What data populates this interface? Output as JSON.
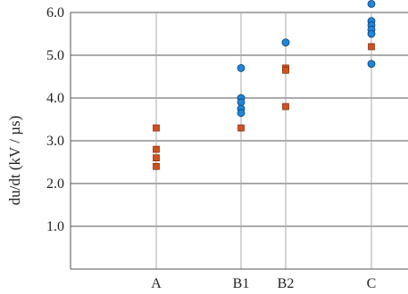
{
  "chart_data": {
    "type": "scatter",
    "title": "",
    "xlabel": "",
    "ylabel": "du/dt (kV / µs)",
    "categories": [
      "A",
      "B1",
      "B2",
      "C"
    ],
    "yticks": [
      "1.0",
      "2.0",
      "3.0",
      "4.0",
      "5.0",
      "6.0"
    ],
    "ylim": [
      0,
      6.0
    ],
    "grid": true,
    "legend": "none",
    "series": [
      {
        "marker": "square",
        "color": "#d2501e",
        "points": [
          {
            "x": "A",
            "y": 3.3
          },
          {
            "x": "A",
            "y": 2.8
          },
          {
            "x": "A",
            "y": 2.6
          },
          {
            "x": "A",
            "y": 2.4
          },
          {
            "x": "B1",
            "y": 3.3
          },
          {
            "x": "B2",
            "y": 4.7
          },
          {
            "x": "B2",
            "y": 4.65
          },
          {
            "x": "B2",
            "y": 3.8
          },
          {
            "x": "C",
            "y": 5.2
          }
        ]
      },
      {
        "marker": "circle",
        "color": "#1f86d8",
        "points": [
          {
            "x": "B1",
            "y": 4.7
          },
          {
            "x": "B1",
            "y": 4.0
          },
          {
            "x": "B1",
            "y": 3.9
          },
          {
            "x": "B1",
            "y": 3.75
          },
          {
            "x": "B1",
            "y": 3.65
          },
          {
            "x": "B2",
            "y": 5.3
          },
          {
            "x": "C",
            "y": 6.2
          },
          {
            "x": "C",
            "y": 5.8
          },
          {
            "x": "C",
            "y": 5.7
          },
          {
            "x": "C",
            "y": 5.6
          },
          {
            "x": "C",
            "y": 5.5
          },
          {
            "x": "C",
            "y": 4.8
          }
        ]
      }
    ]
  }
}
